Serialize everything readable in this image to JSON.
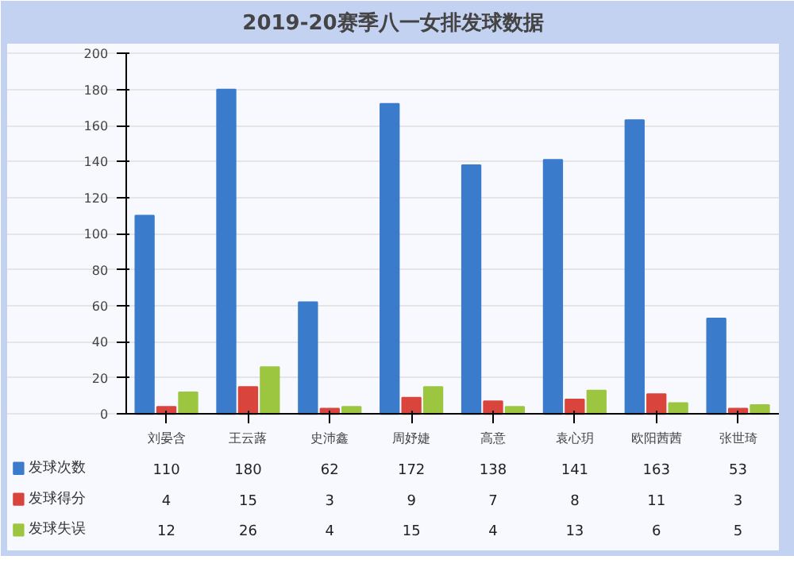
{
  "chart_data": {
    "type": "bar",
    "title": "2019-20赛季八一女排发球数据",
    "categories": [
      "刘晏含",
      "王云蕗",
      "史沛鑫",
      "周妤婕",
      "高意",
      "袁心玥",
      "欧阳茜茜",
      "张世琦"
    ],
    "series": [
      {
        "name": "发球次数",
        "color": "#3b7bcc",
        "values": [
          110,
          180,
          62,
          172,
          138,
          141,
          163,
          53
        ]
      },
      {
        "name": "发球得分",
        "color": "#d9443c",
        "values": [
          4,
          15,
          3,
          9,
          7,
          8,
          11,
          3
        ]
      },
      {
        "name": "发球失误",
        "color": "#9cc640",
        "values": [
          12,
          26,
          4,
          15,
          4,
          13,
          6,
          5
        ]
      }
    ],
    "ylim": [
      0,
      200
    ],
    "yticks": [
      0,
      20,
      40,
      60,
      80,
      100,
      120,
      140,
      160,
      180,
      200
    ],
    "grid": "y",
    "legend": "bottom",
    "data_labels": true
  }
}
